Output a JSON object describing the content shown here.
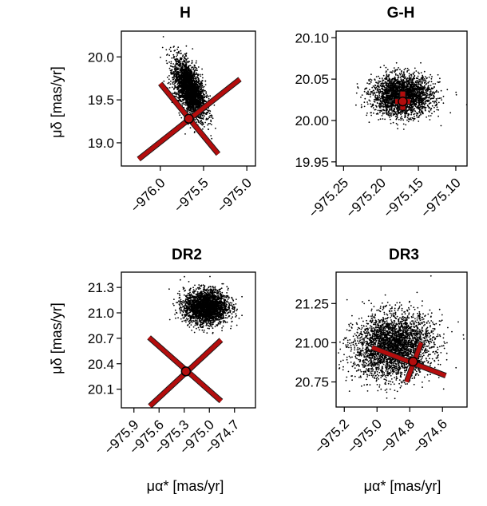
{
  "figure": {
    "ylabel": "μδ [mas/yr]",
    "xlabel": "μα* [mas/yr]"
  },
  "chart_data": [
    {
      "type": "scatter",
      "title": "H",
      "xlim": [
        -976.45,
        -974.9
      ],
      "ylim": [
        18.73,
        20.3
      ],
      "xticks": [
        -976.0,
        -975.5,
        -975.0
      ],
      "xtick_labels": [
        "−976.0",
        "−975.5",
        "−975.0"
      ],
      "yticks": [
        19.0,
        19.5,
        20.0
      ],
      "ytick_labels": [
        "19.0",
        "19.5",
        "20.0"
      ],
      "cloud": {
        "center_x": -975.66,
        "center_y": 19.62,
        "sigma_x": 0.09,
        "sigma_y": 0.17,
        "rho": -0.55,
        "n": 2800
      },
      "marker": {
        "x": -975.67,
        "y": 19.28
      },
      "error_cross": [
        {
          "x1": -976.25,
          "y1": 18.81,
          "x2": -975.08,
          "y2": 19.74
        },
        {
          "x1": -976.0,
          "y1": 19.69,
          "x2": -975.33,
          "y2": 18.87
        }
      ]
    },
    {
      "type": "scatter",
      "title": "G-H",
      "xlim": [
        -975.26,
        -975.085
      ],
      "ylim": [
        19.945,
        20.108
      ],
      "xticks": [
        -975.25,
        -975.2,
        -975.15,
        -975.1
      ],
      "xtick_labels": [
        "−975.25",
        "−975.20",
        "−975.15",
        "−975.10"
      ],
      "yticks": [
        19.95,
        20.0,
        20.05,
        20.1
      ],
      "ytick_labels": [
        "19.95",
        "20.00",
        "20.05",
        "20.10"
      ],
      "cloud": {
        "center_x": -975.171,
        "center_y": 20.03,
        "sigma_x": 0.02,
        "sigma_y": 0.012,
        "rho": 0.0,
        "n": 2600
      },
      "marker": {
        "x": -975.171,
        "y": 20.023
      },
      "error_cross": [
        {
          "x1": -975.181,
          "y1": 20.023,
          "x2": -975.161,
          "y2": 20.023
        },
        {
          "x1": -975.171,
          "y1": 20.013,
          "x2": -975.171,
          "y2": 20.035
        }
      ]
    },
    {
      "type": "scatter",
      "title": "DR2",
      "xlim": [
        -976.05,
        -974.45
      ],
      "ylim": [
        19.88,
        21.48
      ],
      "xticks": [
        -975.9,
        -975.6,
        -975.3,
        -975.0,
        -974.7
      ],
      "xtick_labels": [
        "−975.9",
        "−975.6",
        "−975.3",
        "−975.0",
        "−974.7"
      ],
      "yticks": [
        20.1,
        20.4,
        20.7,
        21.0,
        21.3
      ],
      "ytick_labels": [
        "20.1",
        "20.4",
        "20.7",
        "21.0",
        "21.3"
      ],
      "cloud": {
        "center_x": -975.04,
        "center_y": 21.07,
        "sigma_x": 0.13,
        "sigma_y": 0.1,
        "rho": 0.0,
        "n": 2600
      },
      "marker": {
        "x": -975.28,
        "y": 20.31
      },
      "error_cross": [
        {
          "x1": -975.72,
          "y1": 20.71,
          "x2": -974.86,
          "y2": 19.96
        },
        {
          "x1": -975.71,
          "y1": 19.9,
          "x2": -974.86,
          "y2": 20.68
        }
      ]
    },
    {
      "type": "scatter",
      "title": "DR3",
      "xlim": [
        -975.25,
        -974.45
      ],
      "ylim": [
        20.59,
        21.45
      ],
      "xticks": [
        -975.2,
        -975.0,
        -974.8,
        -974.6
      ],
      "xtick_labels": [
        "−975.2",
        "−975.0",
        "−974.8",
        "−974.6"
      ],
      "yticks": [
        20.75,
        21.0,
        21.25
      ],
      "ytick_labels": [
        "20.75",
        "21.00",
        "21.25"
      ],
      "cloud": {
        "center_x": -974.9,
        "center_y": 20.98,
        "sigma_x": 0.12,
        "sigma_y": 0.1,
        "rho": 0.1,
        "n": 3200
      },
      "marker": {
        "x": -974.78,
        "y": 20.88
      },
      "error_cross": [
        {
          "x1": -975.03,
          "y1": 20.97,
          "x2": -974.58,
          "y2": 20.79
        },
        {
          "x1": -974.82,
          "y1": 20.75,
          "x2": -974.73,
          "y2": 21.0
        }
      ]
    }
  ]
}
